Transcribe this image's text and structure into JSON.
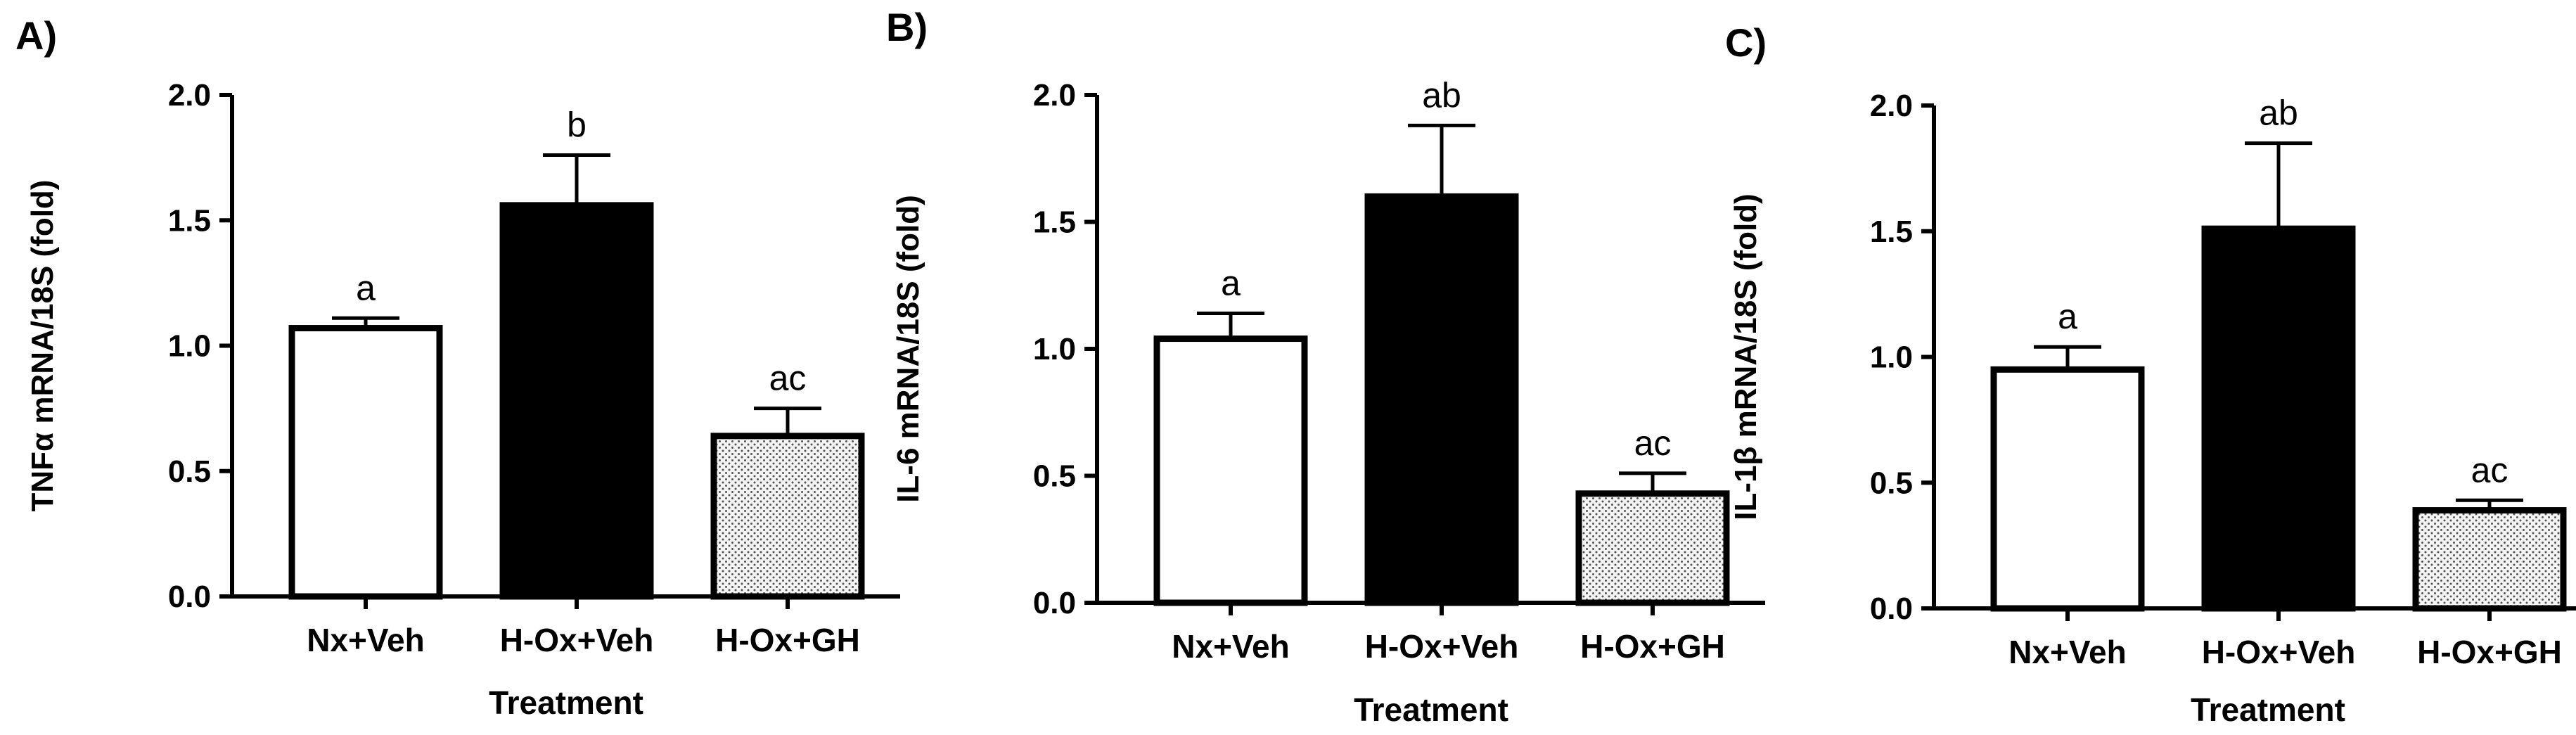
{
  "colors": {
    "ink": "#000000",
    "white": "#ffffff",
    "stipple_bg": "#f4f4f4",
    "stipple_dot": "#555555"
  },
  "chart_data": [
    {
      "type": "bar",
      "panel_label": "A)",
      "categories": [
        "Nx+Veh",
        "H-Ox+Veh",
        "H-Ox+GH"
      ],
      "values": [
        1.07,
        1.56,
        0.64
      ],
      "errors": [
        0.04,
        0.2,
        0.11
      ],
      "significance": [
        "a",
        "b",
        "ac"
      ],
      "fills": [
        "white",
        "black",
        "stipple"
      ],
      "ylabel": "TNFα mRNA/18S (fold)",
      "xlabel": "Treatment",
      "ylim": [
        0,
        2.0
      ],
      "yticks": [
        "0.0",
        "0.5",
        "1.0",
        "1.5",
        "2.0"
      ]
    },
    {
      "type": "bar",
      "panel_label": "B)",
      "categories": [
        "Nx+Veh",
        "H-Ox+Veh",
        "H-Ox+GH"
      ],
      "values": [
        1.04,
        1.6,
        0.43
      ],
      "errors": [
        0.1,
        0.28,
        0.08
      ],
      "significance": [
        "a",
        "ab",
        "ac"
      ],
      "fills": [
        "white",
        "black",
        "stipple"
      ],
      "ylabel": "IL-6 mRNA/18S (fold)",
      "xlabel": "Treatment",
      "ylim": [
        0,
        2.0
      ],
      "yticks": [
        "0.0",
        "0.5",
        "1.0",
        "1.5",
        "2.0"
      ]
    },
    {
      "type": "bar",
      "panel_label": "C)",
      "categories": [
        "Nx+Veh",
        "H-Ox+Veh",
        "H-Ox+GH"
      ],
      "values": [
        0.95,
        1.51,
        0.39
      ],
      "errors": [
        0.09,
        0.34,
        0.04
      ],
      "significance": [
        "a",
        "ab",
        "ac"
      ],
      "fills": [
        "white",
        "black",
        "stipple"
      ],
      "ylabel": "IL-1β mRNA/18S (fold)",
      "xlabel": "Treatment",
      "ylim": [
        0,
        2.0
      ],
      "yticks": [
        "0.0",
        "0.5",
        "1.0",
        "1.5",
        "2.0"
      ]
    }
  ]
}
